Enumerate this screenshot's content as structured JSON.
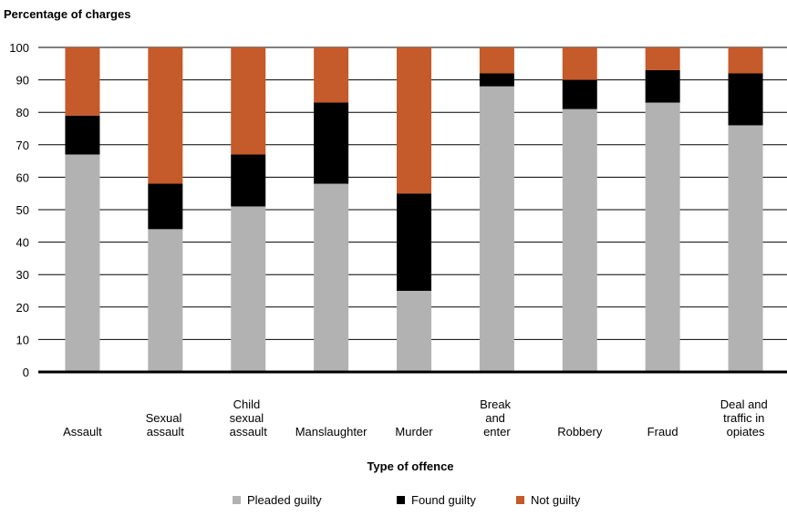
{
  "chart_data": {
    "type": "stacked-bar",
    "title": "Percentage of charges",
    "x_label": "Type of offence",
    "categories": [
      "Assault",
      "Sexual\nassault",
      "Child\nsexual\nassault",
      "Manslaughter",
      "Murder",
      "Break\nand\nenter",
      "Robbery",
      "Fraud",
      "Deal and\ntraffic in\nopiates"
    ],
    "series": [
      {
        "name": "Pleaded guilty",
        "color": "#b2b2b2",
        "values": [
          67,
          44,
          51,
          58,
          25,
          88,
          81,
          83,
          76
        ]
      },
      {
        "name": "Found guilty",
        "color": "#000000",
        "values": [
          12,
          14,
          16,
          25,
          30,
          4,
          9,
          10,
          16
        ]
      },
      {
        "name": "Not guilty",
        "color": "#c55a2a",
        "values": [
          21,
          42,
          33,
          17,
          45,
          8,
          10,
          7,
          8
        ]
      }
    ],
    "ylim": [
      0,
      100
    ],
    "yticks": [
      0,
      10,
      20,
      30,
      40,
      50,
      60,
      70,
      80,
      90,
      100
    ],
    "grid": true
  }
}
